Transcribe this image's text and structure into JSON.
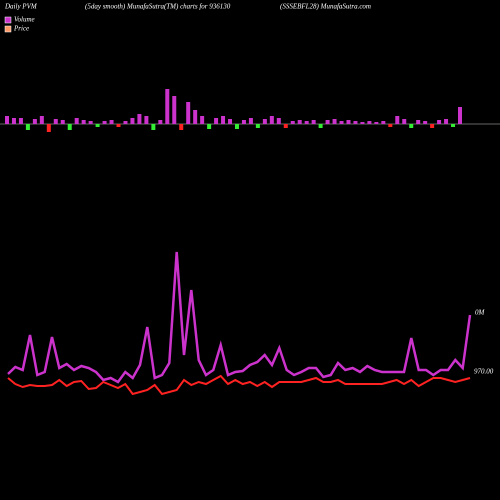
{
  "chart_data": [
    {
      "type": "bar",
      "title": "Daily PVM",
      "subtitle": "(5day smooth) MunafaSutra(TM) charts for 936130",
      "source": "(SSSEBFL28) MunafaSutra.com",
      "ylim": [
        -15,
        40
      ],
      "series": [
        {
          "name": "Volume",
          "color": "#cc33cc",
          "values": [
            8,
            6,
            6,
            -6,
            5,
            8,
            -8,
            5,
            4,
            -6,
            6,
            4,
            3,
            -3,
            3,
            4,
            -3,
            3,
            6,
            10,
            8,
            -6,
            4,
            35,
            28,
            -6,
            22,
            14,
            8,
            -5,
            6,
            8,
            5,
            -5,
            4,
            6,
            -4,
            5,
            8,
            6,
            -4,
            3,
            4,
            3,
            4,
            -4,
            4,
            5,
            3,
            4,
            3,
            2,
            3,
            2,
            3,
            -3,
            8,
            5,
            -4,
            4,
            3,
            -4,
            4,
            5,
            -3,
            17
          ],
          "colors": [
            "#cc33cc",
            "#cc33cc",
            "#cc33cc",
            "#33ee33",
            "#cc33cc",
            "#cc33cc",
            "#ff2222",
            "#cc33cc",
            "#cc33cc",
            "#33ee33",
            "#cc33cc",
            "#cc33cc",
            "#cc33cc",
            "#33ee33",
            "#cc33cc",
            "#cc33cc",
            "#ff2222",
            "#cc33cc",
            "#cc33cc",
            "#cc33cc",
            "#cc33cc",
            "#33ee33",
            "#cc33cc",
            "#cc33cc",
            "#cc33cc",
            "#ff2222",
            "#cc33cc",
            "#cc33cc",
            "#cc33cc",
            "#33ee33",
            "#cc33cc",
            "#cc33cc",
            "#cc33cc",
            "#33ee33",
            "#cc33cc",
            "#cc33cc",
            "#33ee33",
            "#cc33cc",
            "#cc33cc",
            "#cc33cc",
            "#ff2222",
            "#cc33cc",
            "#cc33cc",
            "#cc33cc",
            "#cc33cc",
            "#33ee33",
            "#cc33cc",
            "#cc33cc",
            "#cc33cc",
            "#cc33cc",
            "#cc33cc",
            "#cc33cc",
            "#cc33cc",
            "#cc33cc",
            "#cc33cc",
            "#ff2222",
            "#cc33cc",
            "#cc33cc",
            "#33ee33",
            "#cc33cc",
            "#cc33cc",
            "#ff2222",
            "#cc33cc",
            "#cc33cc",
            "#33ee33",
            "#cc33cc"
          ]
        }
      ]
    },
    {
      "type": "line",
      "annotation": "0M",
      "ylim": [
        910,
        1170
      ],
      "yticks": [
        {
          "value": 970,
          "label": "970.00"
        }
      ],
      "series": [
        {
          "color": "#cc33cc",
          "values": [
            968,
            975,
            972,
            1007,
            967,
            970,
            1005,
            974,
            978,
            972,
            976,
            974,
            970,
            962,
            964,
            960,
            970,
            964,
            977,
            1015,
            964,
            967,
            979,
            1090,
            987,
            1052,
            982,
            967,
            972,
            997,
            967,
            970,
            971,
            977,
            980,
            987,
            977,
            994,
            972,
            967,
            970,
            974,
            974,
            965,
            967,
            979,
            972,
            974,
            970,
            976,
            972,
            970,
            970,
            970,
            970,
            1004,
            972,
            972,
            967,
            972,
            972,
            982,
            974,
            1027
          ]
        },
        {
          "name": "Price",
          "color": "#ff2222",
          "legend_color": "#ff9966",
          "values": [
            964,
            958,
            955,
            957,
            956,
            956,
            957,
            962,
            956,
            960,
            961,
            953,
            954,
            960,
            957,
            954,
            958,
            948,
            950,
            952,
            957,
            948,
            950,
            952,
            962,
            957,
            960,
            958,
            962,
            966,
            958,
            962,
            958,
            960,
            956,
            960,
            955,
            960,
            960,
            960,
            960,
            962,
            964,
            960,
            960,
            962,
            958,
            958,
            958,
            958,
            958,
            958,
            960,
            962,
            958,
            962,
            956,
            960,
            964,
            964,
            962,
            960,
            962,
            964
          ]
        }
      ]
    }
  ]
}
